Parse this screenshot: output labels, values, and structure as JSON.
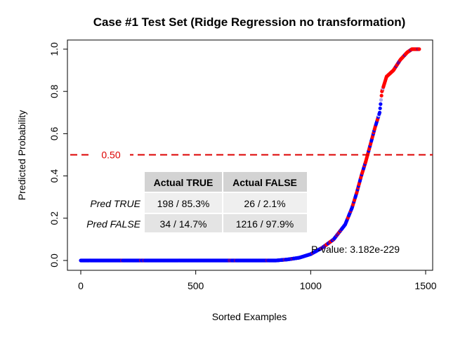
{
  "chart_data": {
    "type": "scatter",
    "title": "Case #1 Test Set (Ridge Regression no transformation)",
    "xlabel": "Sorted Examples",
    "ylabel": "Predicted Probability",
    "xlim": [
      0,
      1500
    ],
    "ylim": [
      0,
      1.0
    ],
    "x_ticks": [
      0,
      500,
      1000,
      1500
    ],
    "y_ticks": [
      0.0,
      0.2,
      0.4,
      0.6,
      0.8,
      1.0
    ],
    "x_tick_labels": [
      "0",
      "500",
      "1000",
      "1500"
    ],
    "y_tick_labels": [
      "0.0",
      "0.2",
      "0.4",
      "0.6",
      "0.8",
      "1.0"
    ],
    "n_examples": 1474,
    "curve": [
      [
        0,
        0.0
      ],
      [
        850,
        0.0
      ],
      [
        900,
        0.005
      ],
      [
        950,
        0.013
      ],
      [
        1000,
        0.03
      ],
      [
        1050,
        0.06
      ],
      [
        1100,
        0.1
      ],
      [
        1150,
        0.17
      ],
      [
        1180,
        0.25
      ],
      [
        1200,
        0.32
      ],
      [
        1220,
        0.4
      ],
      [
        1240,
        0.47
      ],
      [
        1260,
        0.55
      ],
      [
        1280,
        0.63
      ],
      [
        1300,
        0.7
      ],
      [
        1310,
        0.8
      ],
      [
        1330,
        0.87
      ],
      [
        1360,
        0.9
      ],
      [
        1390,
        0.95
      ],
      [
        1420,
        0.985
      ],
      [
        1440,
        1.0
      ],
      [
        1474,
        1.0
      ]
    ],
    "series": [
      {
        "name": "Actual TRUE",
        "color": "#ff0000"
      },
      {
        "name": "Actual FALSE",
        "color": "#0000ff"
      }
    ],
    "threshold": {
      "value": 0.5,
      "label": "0.50",
      "color": "#dd0000",
      "style": "dashed"
    },
    "confusion_table": {
      "col_headers": [
        "Actual TRUE",
        "Actual FALSE"
      ],
      "rows": [
        {
          "label": "Pred TRUE",
          "cells": [
            "198 / 85.3%",
            "26 / 2.1%"
          ]
        },
        {
          "label": "Pred FALSE",
          "cells": [
            "34 / 14.7%",
            "1216 / 97.9%"
          ]
        }
      ]
    },
    "annotation": "P-value: 3.182e-229",
    "grid": false,
    "legend": "none"
  }
}
